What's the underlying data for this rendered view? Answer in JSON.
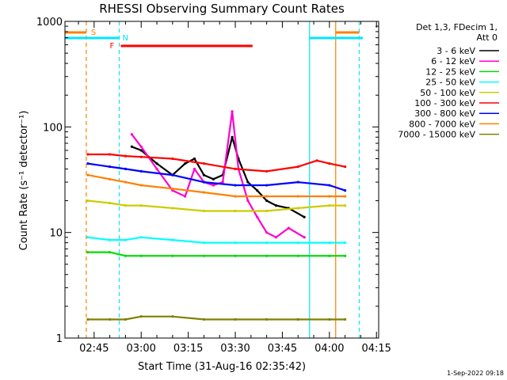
{
  "chart_data": {
    "type": "line",
    "title": "RHESSI Observing Summary Count Rates",
    "xlabel": "Start Time (31-Aug-16 02:35:42)",
    "ylabel": "Count Rate (s⁻¹ detector⁻¹)",
    "yscale": "log",
    "ylim": [
      1,
      1000
    ],
    "xlim": [
      "02:35:42",
      "04:15:42"
    ],
    "x_ticks": [
      "02:45",
      "03:00",
      "03:15",
      "03:30",
      "03:45",
      "04:00",
      "04:15"
    ],
    "y_ticks": [
      "1",
      "10",
      "100",
      "1000"
    ],
    "legend": {
      "position": "right",
      "header": [
        "Det 1,3, FDecim 1,",
        "Att 0"
      ]
    },
    "timestamp": "1-Sep-2022 09:18",
    "flags": [
      {
        "label": "S",
        "color": "#ff8000"
      },
      {
        "label": "N",
        "color": "#00e5ff"
      },
      {
        "label": "F",
        "color": "#ff0000"
      }
    ],
    "series": [
      {
        "name": "3 - 6 keV",
        "color": "#000000",
        "x": [
          "02:43",
          "02:48",
          "02:52",
          "02:55",
          "02:57",
          "03:00",
          "03:05",
          "03:10",
          "03:14",
          "03:17",
          "03:20",
          "03:23",
          "03:26",
          "03:29",
          "03:31",
          "03:34",
          "03:37",
          "03:40",
          "03:43",
          "03:47",
          "03:52"
        ],
        "y": [
          null,
          null,
          null,
          null,
          65,
          60,
          45,
          35,
          45,
          50,
          35,
          32,
          35,
          80,
          50,
          30,
          25,
          20,
          18,
          17,
          14
        ]
      },
      {
        "name": "6 - 12 keV",
        "color": "#ff00cc",
        "x": [
          "02:43",
          "02:48",
          "02:52",
          "02:55",
          "02:57",
          "03:00",
          "03:05",
          "03:10",
          "03:14",
          "03:17",
          "03:20",
          "03:23",
          "03:26",
          "03:29",
          "03:31",
          "03:34",
          "03:37",
          "03:40",
          "03:43",
          "03:47",
          "03:52"
        ],
        "y": [
          null,
          null,
          null,
          null,
          85,
          65,
          40,
          25,
          22,
          40,
          30,
          28,
          30,
          140,
          40,
          20,
          14,
          10,
          9,
          11,
          9
        ]
      },
      {
        "name": "12 - 25 keV",
        "color": "#00dd00",
        "x": [
          "02:43",
          "02:50",
          "02:55",
          "03:00",
          "03:10",
          "03:20",
          "03:30",
          "03:40",
          "03:50",
          "04:00",
          "04:05"
        ],
        "y": [
          6.5,
          6.5,
          6,
          6,
          6,
          6,
          6,
          6,
          6,
          6,
          6
        ]
      },
      {
        "name": "25 - 50 keV",
        "color": "#00ffff",
        "x": [
          "02:43",
          "02:50",
          "02:55",
          "03:00",
          "03:10",
          "03:20",
          "03:30",
          "03:40",
          "03:50",
          "04:00",
          "04:05"
        ],
        "y": [
          9,
          8.5,
          8.5,
          9,
          8.5,
          8,
          8,
          8,
          8,
          8,
          8
        ]
      },
      {
        "name": "50 - 100 keV",
        "color": "#cccc00",
        "x": [
          "02:43",
          "02:50",
          "02:55",
          "03:00",
          "03:10",
          "03:20",
          "03:30",
          "03:40",
          "03:50",
          "04:00",
          "04:05"
        ],
        "y": [
          20,
          19,
          18,
          18,
          17,
          16,
          16,
          16,
          17,
          18,
          18
        ]
      },
      {
        "name": "100 - 300 keV",
        "color": "#ff0000",
        "x": [
          "02:43",
          "02:50",
          "02:55",
          "03:00",
          "03:10",
          "03:20",
          "03:30",
          "03:40",
          "03:50",
          "03:56",
          "04:00",
          "04:05"
        ],
        "y": [
          55,
          55,
          53,
          52,
          50,
          45,
          40,
          38,
          42,
          48,
          45,
          42
        ]
      },
      {
        "name": "300 - 800 keV",
        "color": "#0000ff",
        "x": [
          "02:43",
          "02:50",
          "02:55",
          "03:00",
          "03:10",
          "03:20",
          "03:30",
          "03:40",
          "03:50",
          "04:00",
          "04:05"
        ],
        "y": [
          45,
          42,
          40,
          38,
          35,
          30,
          28,
          28,
          30,
          28,
          25
        ]
      },
      {
        "name": "800 - 7000 keV",
        "color": "#ff8000",
        "x": [
          "02:43",
          "02:50",
          "02:55",
          "03:00",
          "03:10",
          "03:20",
          "03:30",
          "03:40",
          "03:50",
          "04:00",
          "04:05"
        ],
        "y": [
          35,
          32,
          30,
          28,
          26,
          24,
          22,
          22,
          22,
          22,
          22
        ]
      },
      {
        "name": "7000 - 15000 keV",
        "color": "#808000",
        "x": [
          "02:43",
          "02:50",
          "02:55",
          "03:00",
          "03:10",
          "03:20",
          "03:30",
          "03:40",
          "03:50",
          "04:00",
          "04:05"
        ],
        "y": [
          1.5,
          1.5,
          1.5,
          1.6,
          1.6,
          1.5,
          1.5,
          1.5,
          1.5,
          1.5,
          1.5
        ]
      }
    ]
  }
}
